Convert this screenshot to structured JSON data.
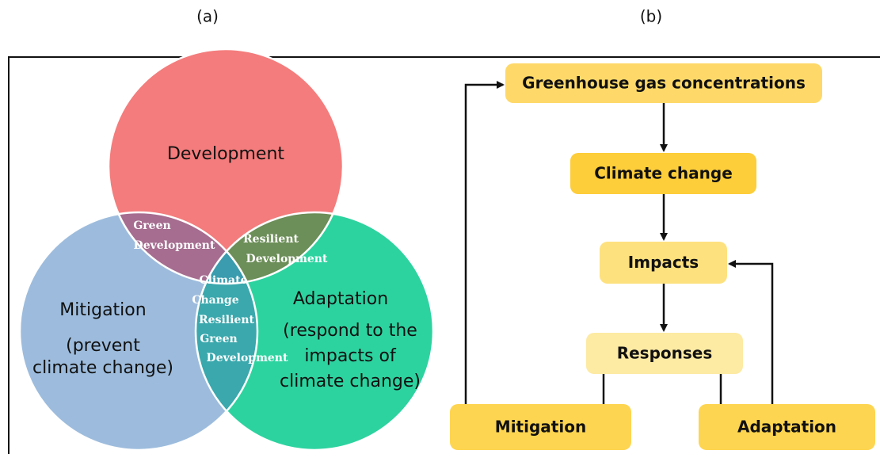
{
  "panel_labels": [
    "(a)",
    "(b)"
  ],
  "venn": {
    "sets": [
      {
        "name": "Development",
        "lines": [
          "Development"
        ]
      },
      {
        "name": "Mitigation",
        "lines": [
          "Mitigation",
          "(prevent",
          "climate change)"
        ]
      },
      {
        "name": "Adaptation",
        "lines": [
          "Adaptation",
          "(respond to the",
          "impacts of",
          "climate change)"
        ]
      }
    ],
    "overlaps": [
      {
        "lines": [
          "Green",
          "Development"
        ]
      },
      {
        "lines": [
          "Resilient",
          "Development"
        ]
      },
      {
        "lines": [
          "Climate",
          "Change",
          "Resilient",
          "Green",
          "Development"
        ]
      }
    ]
  },
  "flow": {
    "nodes": [
      {
        "label": "Greenhouse gas concentrations"
      },
      {
        "label": "Climate change"
      },
      {
        "label": "Impacts"
      },
      {
        "label": "Responses"
      },
      {
        "label": "Mitigation"
      },
      {
        "label": "Adaptation"
      }
    ]
  }
}
